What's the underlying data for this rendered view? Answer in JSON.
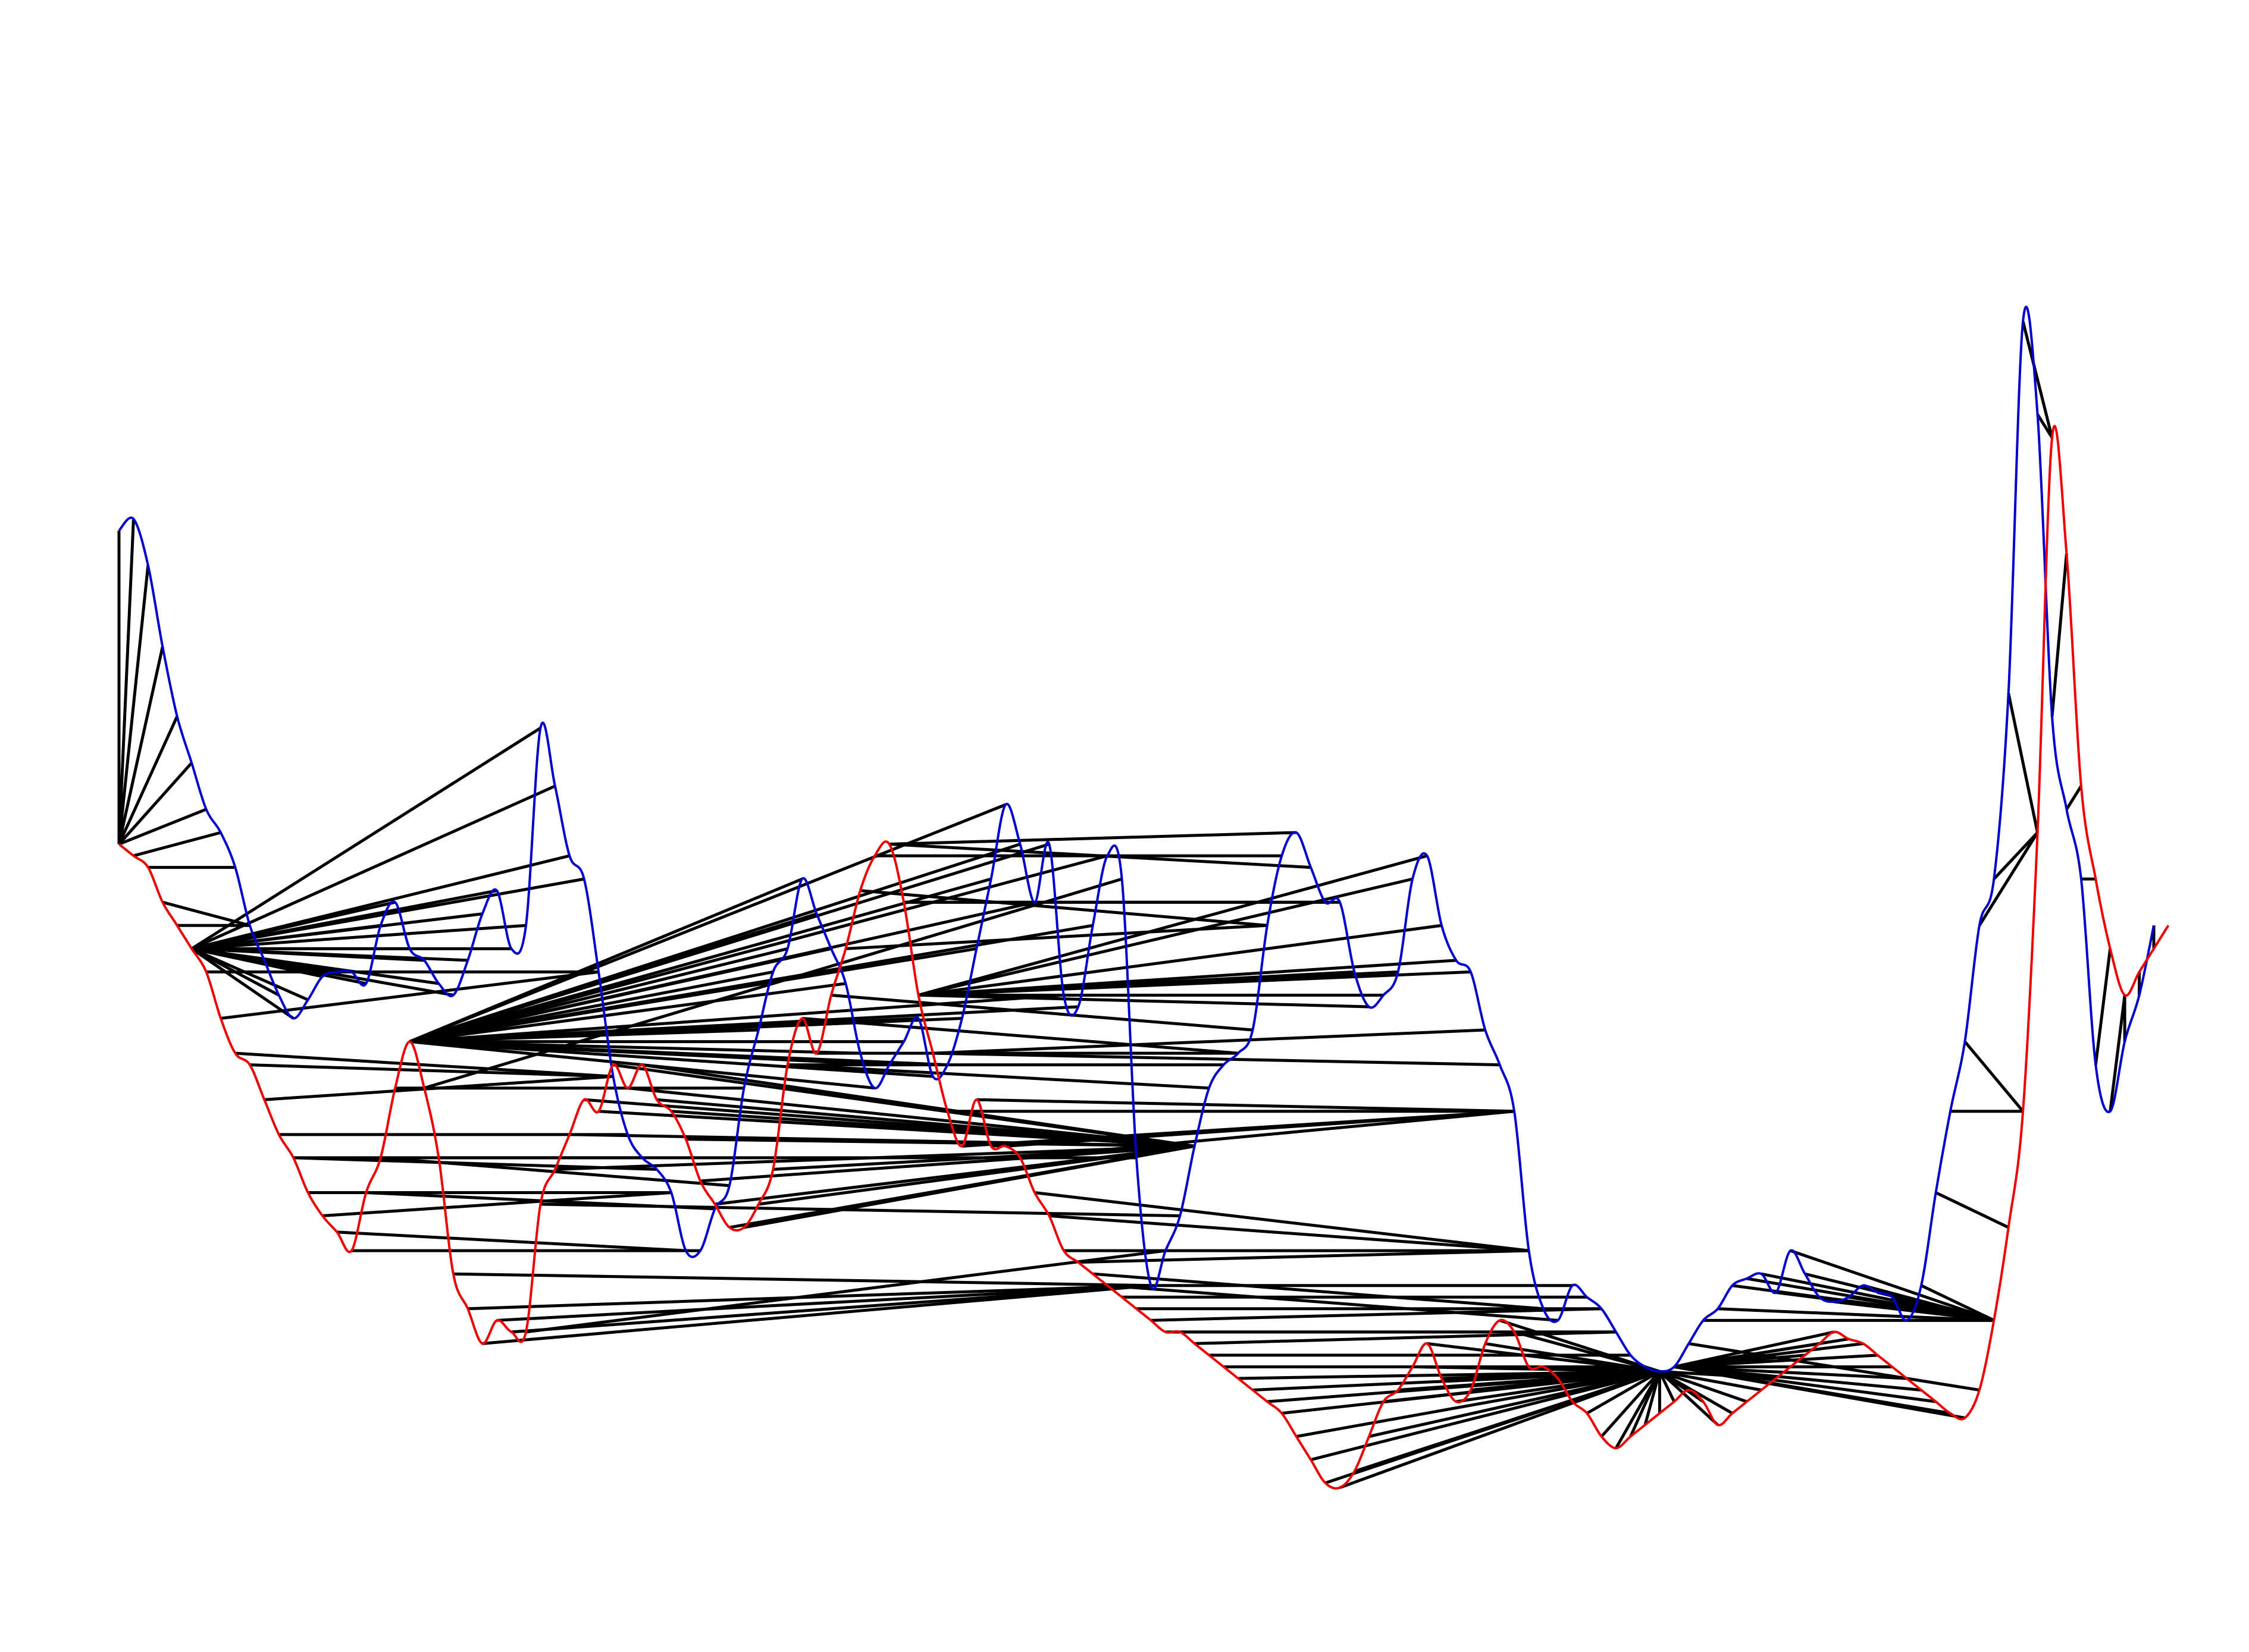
{
  "chart_data": {
    "type": "line",
    "title": "",
    "xlabel": "",
    "ylabel": "",
    "axes_visible": false,
    "grid": false,
    "legend": "none",
    "xlim": [
      0,
      140
    ],
    "ylim": [
      -2.6,
      3.8
    ],
    "colors": {
      "series_a": "#0000cc",
      "series_b": "#ee0000",
      "links": "#000000"
    },
    "series": [
      {
        "values": [
          1.9,
          1.95,
          1.75,
          1.4,
          1.1,
          0.9,
          0.7,
          0.6,
          0.45,
          0.2,
          0.05,
          -0.1,
          -0.2,
          -0.12,
          -0.02,
          0.0,
          0.0,
          -0.05,
          0.2,
          0.3,
          0.1,
          0.05,
          -0.05,
          -0.1,
          0.05,
          0.25,
          0.35,
          0.1,
          0.2,
          1.05,
          0.8,
          0.5,
          0.4,
          0.0,
          -0.45,
          -0.7,
          -0.8,
          -0.85,
          -0.95,
          -1.2,
          -1.2,
          -1.02,
          -0.92,
          -0.5,
          -0.25,
          0.0,
          0.1,
          0.4,
          0.25,
          0.1,
          -0.05,
          -0.35,
          -0.5,
          -0.4,
          -0.3,
          -0.2,
          -0.45,
          -0.4,
          -0.2,
          0.1,
          0.4,
          0.72,
          0.55,
          0.3,
          0.55,
          -0.1,
          -0.15,
          0.2,
          0.5,
          0.4,
          -0.8,
          -1.35,
          -1.2,
          -1.05,
          -0.75,
          -0.5,
          -0.4,
          -0.35,
          -0.25,
          0.2,
          0.5,
          0.6,
          0.45,
          0.3,
          0.3,
          0.0,
          -0.15,
          -0.1,
          0.0,
          0.4,
          0.5,
          0.2,
          0.05,
          0.0,
          -0.25,
          -0.4,
          -0.6,
          -1.2,
          -1.45,
          -1.5,
          -1.35,
          -1.4,
          -1.45,
          -1.55,
          -1.65,
          -1.7,
          -1.72,
          -1.7,
          -1.6,
          -1.5,
          -1.45,
          -1.35,
          -1.32,
          -1.3,
          -1.38,
          -1.2,
          -1.3,
          -1.4,
          -1.42,
          -1.4,
          -1.35,
          -1.38,
          -1.4,
          -1.5,
          -1.35,
          -0.95,
          -0.6,
          -0.3,
          0.2,
          0.4,
          1.2,
          2.8,
          2.4,
          1.1,
          0.7,
          0.4,
          -0.4,
          -0.6,
          -0.3,
          -0.1,
          0.2
        ]
      },
      {
        "values": [
          0.55,
          0.5,
          0.45,
          0.3,
          0.2,
          0.1,
          0.0,
          -0.2,
          -0.35,
          -0.4,
          -0.55,
          -0.7,
          -0.8,
          -0.95,
          -1.05,
          -1.12,
          -1.2,
          -0.95,
          -0.8,
          -0.5,
          -0.3,
          -0.5,
          -0.8,
          -1.3,
          -1.45,
          -1.6,
          -1.5,
          -1.55,
          -1.55,
          -1.0,
          -0.85,
          -0.7,
          -0.55,
          -0.6,
          -0.4,
          -0.5,
          -0.4,
          -0.55,
          -0.6,
          -0.72,
          -0.9,
          -1.0,
          -1.1,
          -1.1,
          -1.0,
          -0.85,
          -0.4,
          -0.2,
          -0.35,
          -0.1,
          0.1,
          0.35,
          0.5,
          0.55,
          0.3,
          -0.1,
          -0.35,
          -0.6,
          -0.75,
          -0.55,
          -0.75,
          -0.75,
          -0.8,
          -0.95,
          -1.05,
          -1.2,
          -1.25,
          -1.3,
          -1.35,
          -1.4,
          -1.45,
          -1.5,
          -1.55,
          -1.55,
          -1.6,
          -1.65,
          -1.7,
          -1.75,
          -1.8,
          -1.85,
          -1.9,
          -2.0,
          -2.1,
          -2.2,
          -2.22,
          -2.15,
          -2.0,
          -1.85,
          -1.8,
          -1.7,
          -1.6,
          -1.75,
          -1.85,
          -1.8,
          -1.6,
          -1.5,
          -1.55,
          -1.7,
          -1.7,
          -1.75,
          -1.85,
          -1.9,
          -2.0,
          -2.05,
          -2.0,
          -1.95,
          -1.9,
          -1.85,
          -1.8,
          -1.85,
          -1.95,
          -1.9,
          -1.85,
          -1.8,
          -1.75,
          -1.7,
          -1.65,
          -1.6,
          -1.55,
          -1.58,
          -1.6,
          -1.65,
          -1.7,
          -1.75,
          -1.8,
          -1.85,
          -1.9,
          -1.92,
          -1.8,
          -1.5,
          -1.1,
          -0.6,
          0.6,
          2.3,
          1.8,
          0.8,
          0.4,
          0.1,
          -0.1,
          0.0,
          0.1,
          0.2
        ]
      }
    ]
  }
}
